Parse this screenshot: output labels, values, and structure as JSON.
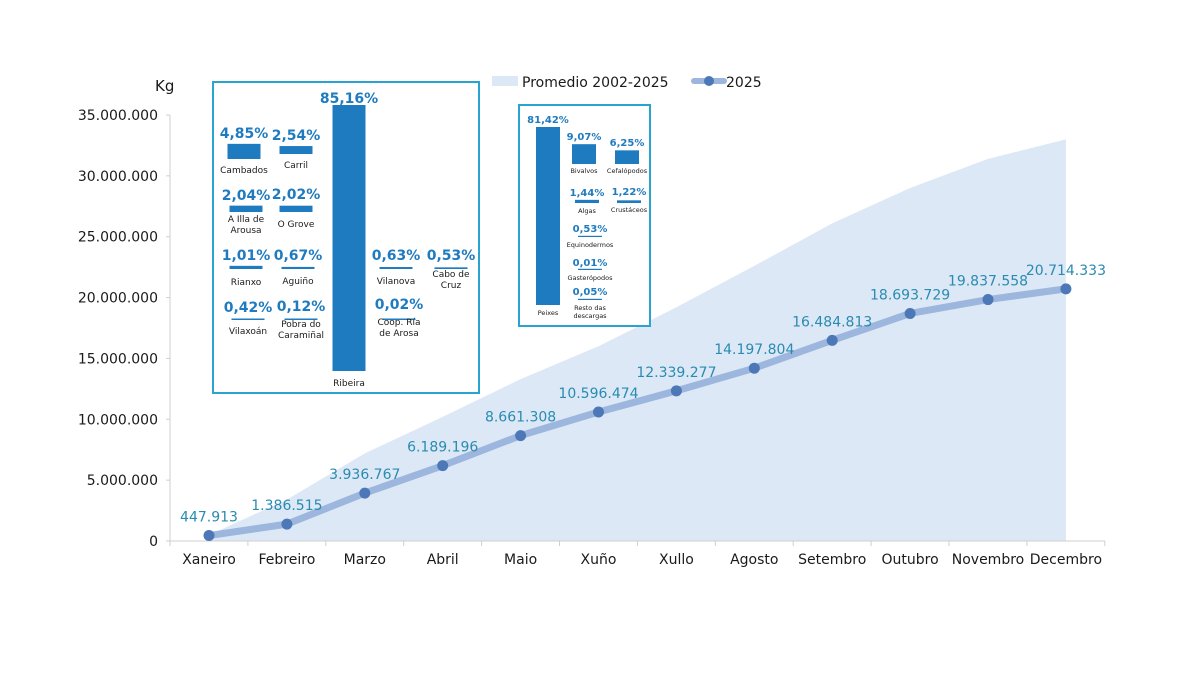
{
  "chart_data": {
    "type": "line",
    "unit_label": "Kg",
    "categories": [
      "Xaneiro",
      "Febreiro",
      "Marzo",
      "Abril",
      "Maio",
      "Xuño",
      "Xullo",
      "Agosto",
      "Setembro",
      "Outubro",
      "Novembro",
      "Decembro"
    ],
    "ylim": [
      0,
      35000000
    ],
    "yticks": [
      0,
      5000000,
      10000000,
      15000000,
      20000000,
      25000000,
      30000000,
      35000000
    ],
    "ytick_labels": [
      "0",
      "5.000.000",
      "10.000.000",
      "15.000.000",
      "20.000.000",
      "25.000.000",
      "30.000.000",
      "35.000.000"
    ],
    "series": [
      {
        "name": "Promedio 2002-2025",
        "type": "area",
        "color": "#dce8f6",
        "values": [
          500000,
          3400000,
          7200000,
          10200000,
          13300000,
          16000000,
          19200000,
          22600000,
          26100000,
          29000000,
          31400000,
          33000000
        ]
      },
      {
        "name": "2025",
        "type": "line",
        "color": "#9cb6dd",
        "marker_color": "#4c78b8",
        "values": [
          447913,
          1386515,
          3936767,
          6189196,
          8661308,
          10596474,
          12339277,
          14197804,
          16484813,
          18693729,
          19837558,
          20714333
        ],
        "labels": [
          "447.913",
          "1.386.515",
          "3.936.767",
          "6.189.196",
          "8.661.308",
          "10.596.474",
          "12.339.277",
          "14.197.804",
          "16.484.813",
          "18.693.729",
          "19.837.558",
          "20.714.333"
        ]
      }
    ],
    "insets": [
      {
        "type": "bar",
        "border_color": "#29a3d0",
        "bar_color": "#1f7bbf",
        "bars": [
          {
            "label": "Cambados",
            "value": 4.85,
            "value_label": "4,85%"
          },
          {
            "label": "Carril",
            "value": 2.54,
            "value_label": "2,54%"
          },
          {
            "label": "A Illa de Arousa",
            "value": 2.04,
            "value_label": "2,04%"
          },
          {
            "label": "O Grove",
            "value": 2.02,
            "value_label": "2,02%"
          },
          {
            "label": "Rianxo",
            "value": 1.01,
            "value_label": "1,01%"
          },
          {
            "label": "Aguiño",
            "value": 0.67,
            "value_label": "0,67%"
          },
          {
            "label": "Vilaxoán",
            "value": 0.42,
            "value_label": "0,42%"
          },
          {
            "label": "Pobra do Caramiñal",
            "value": 0.12,
            "value_label": "0,12%"
          },
          {
            "label": "Ribeira",
            "value": 85.16,
            "value_label": "85,16%"
          },
          {
            "label": "Vilanova",
            "value": 0.63,
            "value_label": "0,63%"
          },
          {
            "label": "Coop. Ría de Arosa",
            "value": 0.02,
            "value_label": "0,02%"
          },
          {
            "label": "Cabo de Cruz",
            "value": 0.53,
            "value_label": "0,53%"
          }
        ]
      },
      {
        "type": "bar",
        "border_color": "#29a3d0",
        "bar_color": "#1f7bbf",
        "bars": [
          {
            "label": "Peixes",
            "value": 81.42,
            "value_label": "81,42%"
          },
          {
            "label": "Bivalvos",
            "value": 9.07,
            "value_label": "9,07%"
          },
          {
            "label": "Cefalópodos",
            "value": 6.25,
            "value_label": "6,25%"
          },
          {
            "label": "Algas",
            "value": 1.44,
            "value_label": "1,44%"
          },
          {
            "label": "Crustáceos",
            "value": 1.22,
            "value_label": "1,22%"
          },
          {
            "label": "Equinodermos",
            "value": 0.53,
            "value_label": "0,53%"
          },
          {
            "label": "Gasterópodos",
            "value": 0.01,
            "value_label": "0,01%"
          },
          {
            "label": "Resto das descargas",
            "value": 0.05,
            "value_label": "0,05%"
          }
        ]
      }
    ]
  }
}
